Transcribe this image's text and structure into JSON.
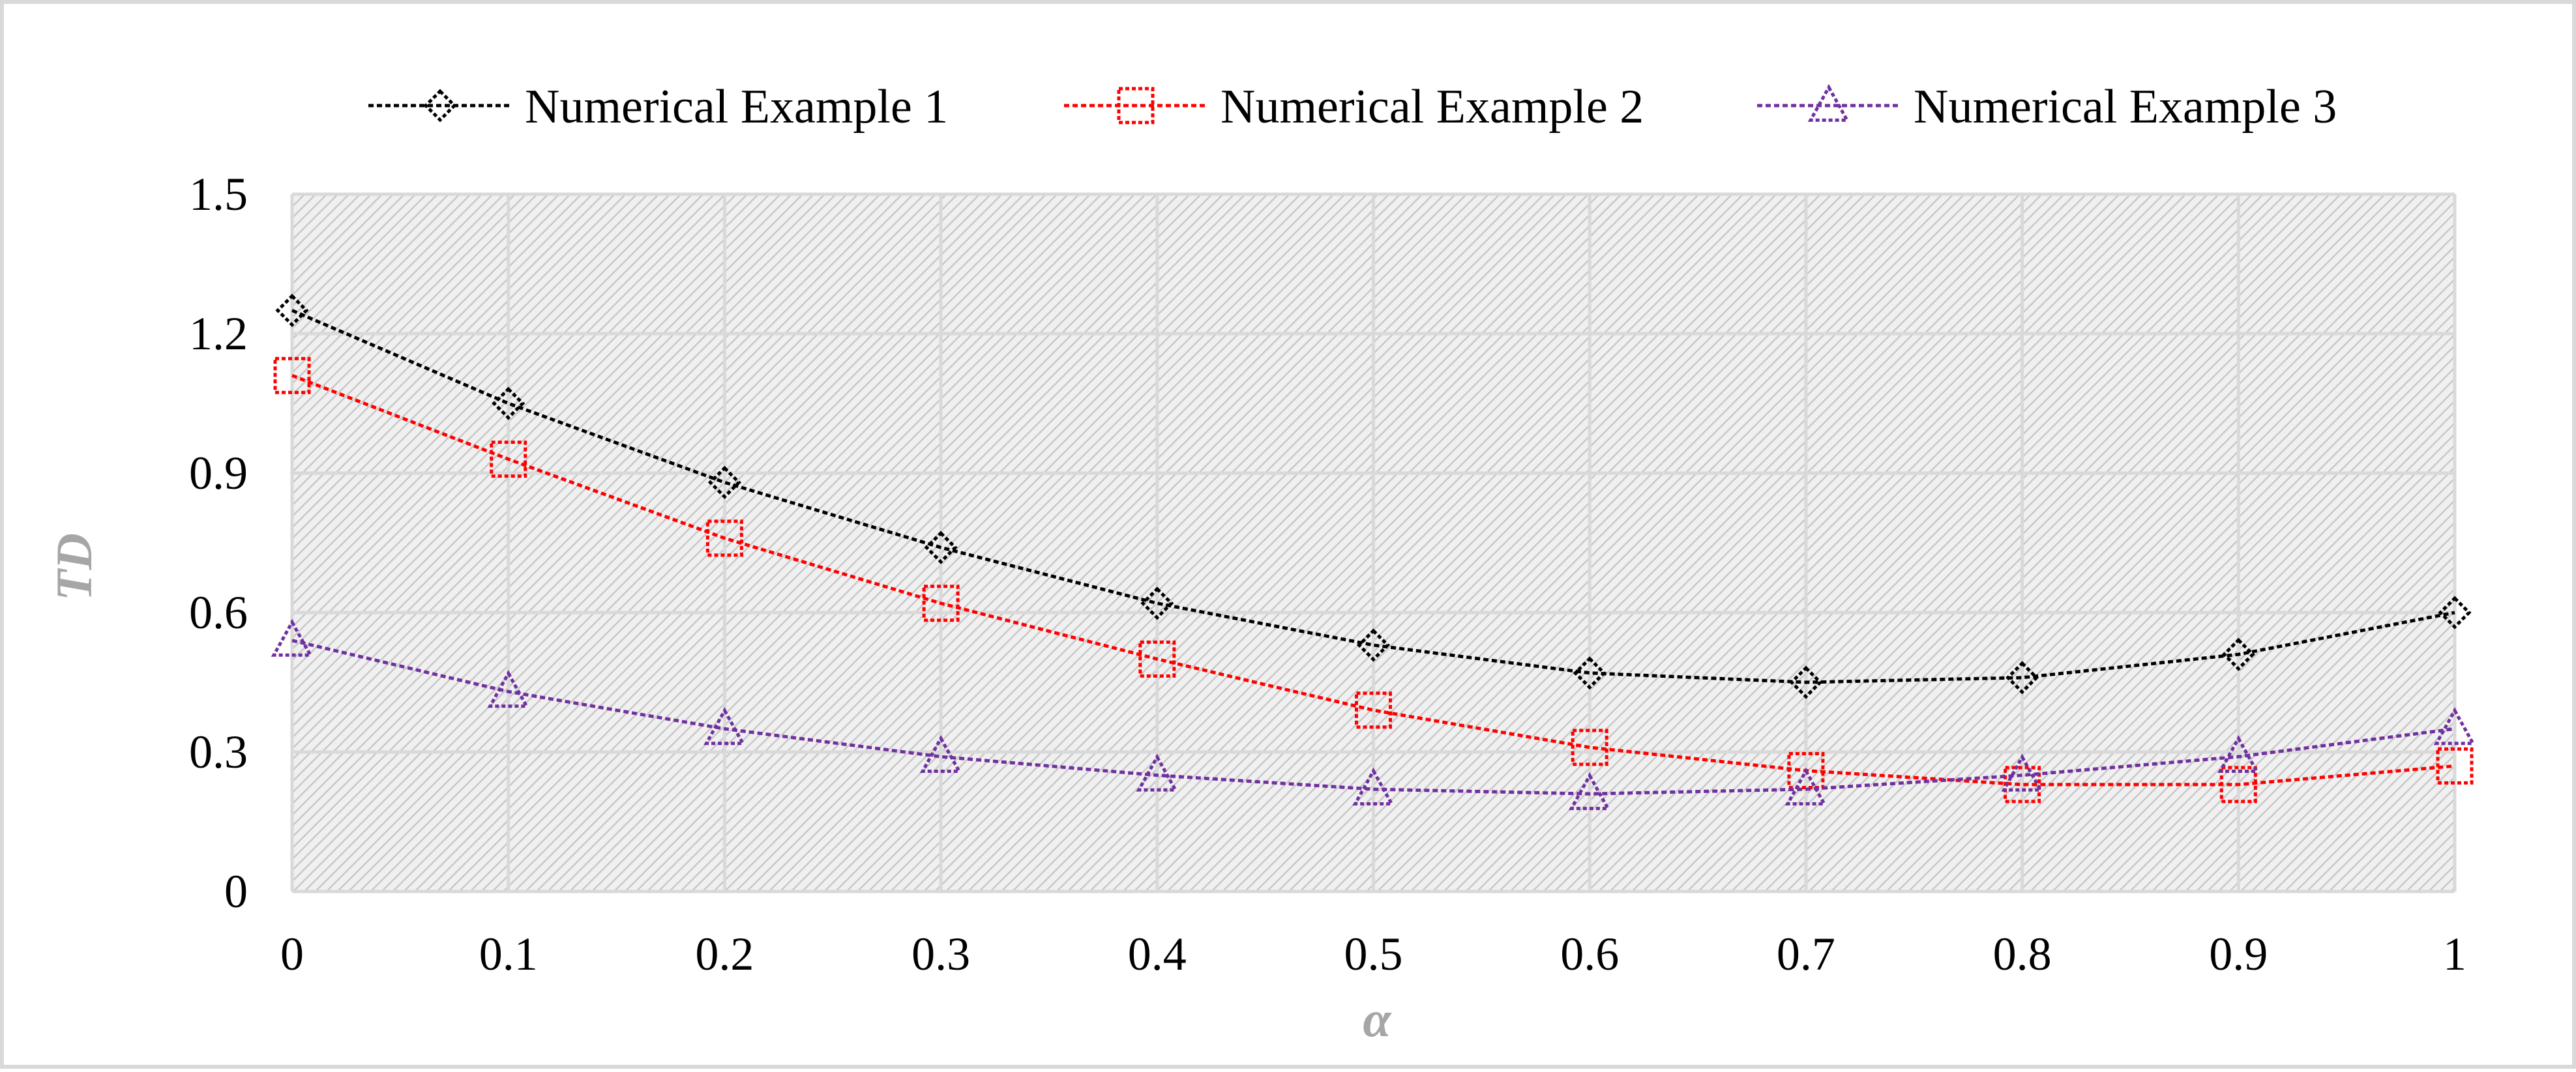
{
  "chart_data": {
    "type": "line",
    "title": "",
    "xlabel": "α",
    "ylabel": "TD",
    "x": [
      0,
      0.1,
      0.2,
      0.3,
      0.4,
      0.5,
      0.6,
      0.7,
      0.8,
      0.9,
      1
    ],
    "x_tick_labels": [
      "0",
      "0.1",
      "0.2",
      "0.3",
      "0.4",
      "0.5",
      "0.6",
      "0.7",
      "0.8",
      "0.9",
      "1"
    ],
    "y_ticks": [
      0,
      0.3,
      0.6,
      0.9,
      1.2,
      1.5
    ],
    "y_tick_labels": [
      "0",
      "0.3",
      "0.6",
      "0.9",
      "1.2",
      "1.5"
    ],
    "xlim": [
      0,
      1
    ],
    "ylim": [
      0,
      1.5
    ],
    "grid": true,
    "legend_position": "top",
    "series": [
      {
        "name": "Numerical Example 1",
        "color": "#000000",
        "marker": "diamond",
        "values": [
          1.25,
          1.05,
          0.88,
          0.74,
          0.62,
          0.53,
          0.47,
          0.45,
          0.46,
          0.51,
          0.6
        ]
      },
      {
        "name": "Numerical Example 2",
        "color": "#ff0000",
        "marker": "square",
        "values": [
          1.11,
          0.93,
          0.76,
          0.62,
          0.5,
          0.39,
          0.31,
          0.26,
          0.23,
          0.23,
          0.27
        ]
      },
      {
        "name": "Numerical Example 3",
        "color": "#7030a0",
        "marker": "triangle",
        "values": [
          0.54,
          0.43,
          0.35,
          0.29,
          0.25,
          0.22,
          0.21,
          0.22,
          0.25,
          0.29,
          0.35
        ]
      }
    ]
  }
}
